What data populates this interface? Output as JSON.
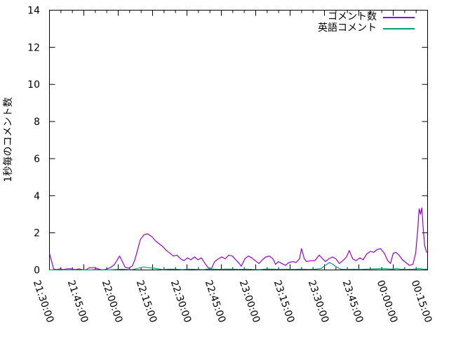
{
  "figure": {
    "background_color": "#ffffff",
    "axis_color": "#000000",
    "text_color": "#000000"
  },
  "chart_data": {
    "type": "line",
    "ylabel": "1秒毎のコメント数",
    "xlabel": "",
    "grid": false,
    "legend_position": "top-right-inside",
    "ylim": [
      0,
      14
    ],
    "y_ticks": [
      0,
      2,
      4,
      6,
      8,
      10,
      12,
      14
    ],
    "x_range_minutes": [
      0,
      165
    ],
    "x_major_step_minutes": 15,
    "x_minor_step_minutes": 5,
    "x_tick_labels": [
      "21:30:00",
      "21:45:00",
      "22:00:00",
      "22:15:00",
      "22:30:00",
      "22:45:00",
      "23:00:00",
      "23:15:00",
      "23:30:00",
      "23:45:00",
      "00:00:00",
      "00:15:00"
    ],
    "series": [
      {
        "name": "コメント数",
        "color": "#9400d3",
        "points": [
          [
            0,
            0.9
          ],
          [
            0.9,
            0.5
          ],
          [
            1.8,
            0.05
          ],
          [
            3.1,
            0.02
          ],
          [
            4.6,
            0.06
          ],
          [
            6.1,
            0.02
          ],
          [
            7.6,
            0.06
          ],
          [
            9.2,
            0.06
          ],
          [
            11.3,
            0.02
          ],
          [
            12.8,
            0.06
          ],
          [
            14.4,
            0.02
          ],
          [
            15.9,
            0
          ],
          [
            17.4,
            0.12
          ],
          [
            19.9,
            0.12
          ],
          [
            21.4,
            0.05
          ],
          [
            23.2,
            0
          ],
          [
            25.1,
            0.05
          ],
          [
            26.9,
            0.15
          ],
          [
            28.4,
            0.3
          ],
          [
            29.6,
            0.55
          ],
          [
            30.6,
            0.75
          ],
          [
            31.8,
            0.45
          ],
          [
            33,
            0.15
          ],
          [
            34.5,
            0.1
          ],
          [
            36.1,
            0.2
          ],
          [
            37.3,
            0.55
          ],
          [
            38.5,
            1.1
          ],
          [
            39.7,
            1.65
          ],
          [
            41.3,
            1.9
          ],
          [
            42.8,
            1.95
          ],
          [
            44.6,
            1.8
          ],
          [
            46.4,
            1.55
          ],
          [
            48,
            1.4
          ],
          [
            49.5,
            1.25
          ],
          [
            51,
            1.05
          ],
          [
            52.6,
            0.9
          ],
          [
            54.1,
            0.75
          ],
          [
            55.6,
            0.8
          ],
          [
            57.2,
            0.6
          ],
          [
            58.7,
            0.5
          ],
          [
            60.2,
            0.65
          ],
          [
            61.7,
            0.55
          ],
          [
            63.3,
            0.7
          ],
          [
            64.8,
            0.55
          ],
          [
            66.3,
            0.65
          ],
          [
            67.9,
            0.35
          ],
          [
            69.4,
            0.1
          ],
          [
            70.6,
            0.05
          ],
          [
            72.1,
            0.45
          ],
          [
            73.7,
            0.6
          ],
          [
            75.2,
            0.7
          ],
          [
            76.7,
            0.6
          ],
          [
            78.2,
            0.8
          ],
          [
            79.8,
            0.75
          ],
          [
            81.3,
            0.55
          ],
          [
            82.8,
            0.35
          ],
          [
            83.7,
            0.2
          ],
          [
            85.3,
            0.6
          ],
          [
            86.8,
            0.75
          ],
          [
            88.3,
            0.65
          ],
          [
            89.8,
            0.5
          ],
          [
            91.4,
            0.35
          ],
          [
            92.9,
            0.55
          ],
          [
            94.4,
            0.7
          ],
          [
            96,
            0.75
          ],
          [
            97.5,
            0.6
          ],
          [
            98.7,
            0.3
          ],
          [
            99.9,
            0.45
          ],
          [
            101.4,
            0.35
          ],
          [
            103,
            0.25
          ],
          [
            104.5,
            0.4
          ],
          [
            106,
            0.45
          ],
          [
            107.6,
            0.4
          ],
          [
            109.1,
            0.6
          ],
          [
            110,
            1.15
          ],
          [
            111.2,
            0.6
          ],
          [
            112.2,
            0.45
          ],
          [
            114,
            0.5
          ],
          [
            115.8,
            0.5
          ],
          [
            117.7,
            0.8
          ],
          [
            119.2,
            0.6
          ],
          [
            120.4,
            0.45
          ],
          [
            121.9,
            0.6
          ],
          [
            123.5,
            0.7
          ],
          [
            125,
            0.6
          ],
          [
            126.5,
            0.35
          ],
          [
            128,
            0.5
          ],
          [
            129.6,
            0.7
          ],
          [
            130.8,
            1.05
          ],
          [
            132.3,
            0.6
          ],
          [
            133.8,
            0.5
          ],
          [
            135.4,
            0.65
          ],
          [
            136.9,
            0.55
          ],
          [
            138.4,
            0.85
          ],
          [
            140,
            1.0
          ],
          [
            141.5,
            0.95
          ],
          [
            143,
            1.1
          ],
          [
            144.5,
            1.15
          ],
          [
            146.1,
            0.9
          ],
          [
            147.6,
            0.5
          ],
          [
            148.8,
            0.35
          ],
          [
            150,
            0.9
          ],
          [
            151.2,
            0.95
          ],
          [
            152.5,
            0.8
          ],
          [
            154,
            0.55
          ],
          [
            155.5,
            0.4
          ],
          [
            157,
            0.25
          ],
          [
            158.6,
            0.3
          ],
          [
            159.8,
            0.9
          ],
          [
            160.7,
            2.2
          ],
          [
            161.3,
            3.3
          ],
          [
            161.9,
            3.0
          ],
          [
            162.5,
            3.35
          ],
          [
            163.1,
            2.2
          ],
          [
            163.7,
            1.3
          ],
          [
            164.6,
            0.95
          ]
        ]
      },
      {
        "name": "英語コメント",
        "color": "#009e73",
        "points": [
          [
            0,
            0
          ],
          [
            4.6,
            0.02
          ],
          [
            7.6,
            0
          ],
          [
            12.8,
            0.02
          ],
          [
            15.9,
            0
          ],
          [
            21.4,
            0.02
          ],
          [
            25.1,
            0
          ],
          [
            28.4,
            0.02
          ],
          [
            31.8,
            0.04
          ],
          [
            34.5,
            0.02
          ],
          [
            36.1,
            0.02
          ],
          [
            38.2,
            0.08
          ],
          [
            39.7,
            0.12
          ],
          [
            41.3,
            0.16
          ],
          [
            42.8,
            0.12
          ],
          [
            45.2,
            0.1
          ],
          [
            47.4,
            0.06
          ],
          [
            49.5,
            0.02
          ],
          [
            52,
            0.04
          ],
          [
            55,
            0.04
          ],
          [
            58.1,
            0.02
          ],
          [
            61.1,
            0.05
          ],
          [
            64.2,
            0.03
          ],
          [
            67.3,
            0.02
          ],
          [
            70.3,
            0.06
          ],
          [
            73.4,
            0.03
          ],
          [
            76.4,
            0.05
          ],
          [
            79.5,
            0.04
          ],
          [
            82.6,
            0.03
          ],
          [
            85.6,
            0.05
          ],
          [
            88.7,
            0.03
          ],
          [
            91.7,
            0.02
          ],
          [
            94.8,
            0.05
          ],
          [
            97.8,
            0.04
          ],
          [
            100.9,
            0.03
          ],
          [
            104,
            0.04
          ],
          [
            107,
            0.03
          ],
          [
            110,
            0.05
          ],
          [
            113.1,
            0.03
          ],
          [
            116.1,
            0.04
          ],
          [
            118.6,
            0.08
          ],
          [
            120.4,
            0.25
          ],
          [
            122.2,
            0.4
          ],
          [
            123.8,
            0.3
          ],
          [
            125.3,
            0.15
          ],
          [
            127.1,
            0.04
          ],
          [
            129.9,
            0.03
          ],
          [
            132.9,
            0.04
          ],
          [
            136,
            0.03
          ],
          [
            139,
            0.05
          ],
          [
            142.1,
            0.06
          ],
          [
            145.1,
            0.08
          ],
          [
            147.3,
            0.06
          ],
          [
            149.7,
            0.04
          ],
          [
            151.5,
            0.08
          ],
          [
            152.8,
            0.05
          ],
          [
            155.9,
            0.03
          ],
          [
            158.9,
            0.04
          ],
          [
            161,
            0.08
          ],
          [
            163.1,
            0.05
          ],
          [
            164.6,
            0.04
          ]
        ]
      }
    ]
  }
}
